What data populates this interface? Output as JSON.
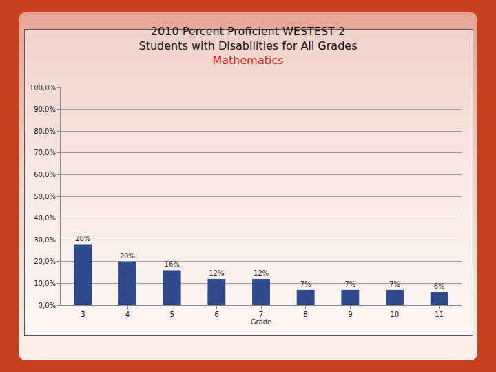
{
  "chart_data": {
    "type": "bar",
    "title": "2010 Percent Proficient WESTEST 2\nStudents with Disabilities for All Grades",
    "subtitle": "Mathematics",
    "x_label": "Grade",
    "categories": [
      "3",
      "4",
      "5",
      "6",
      "7",
      "8",
      "9",
      "10",
      "11"
    ],
    "values": [
      28,
      20,
      16,
      12,
      12,
      7,
      7,
      7,
      6
    ],
    "value_labels": [
      "28%",
      "20%",
      "16%",
      "12%",
      "12%",
      "7%",
      "7%",
      "7%",
      "6%"
    ],
    "data_labels": true,
    "color": "#2f4a8a",
    "ylim": [
      0,
      100
    ],
    "yticks": [
      {
        "value": 0,
        "label": "0,0%"
      },
      {
        "value": 10,
        "label": "10,0%"
      },
      {
        "value": 20,
        "label": "20,0%"
      },
      {
        "value": 30,
        "label": "30,0%"
      },
      {
        "value": 40,
        "label": "40,0%"
      },
      {
        "value": 50,
        "label": "50,0%"
      },
      {
        "value": 60,
        "label": "60,0%"
      },
      {
        "value": 70,
        "label": "70,0%"
      },
      {
        "value": 80,
        "label": "80,0%"
      },
      {
        "value": 90,
        "label": "90,0%"
      },
      {
        "value": 100,
        "label": "100,0%"
      }
    ],
    "grid": true
  }
}
